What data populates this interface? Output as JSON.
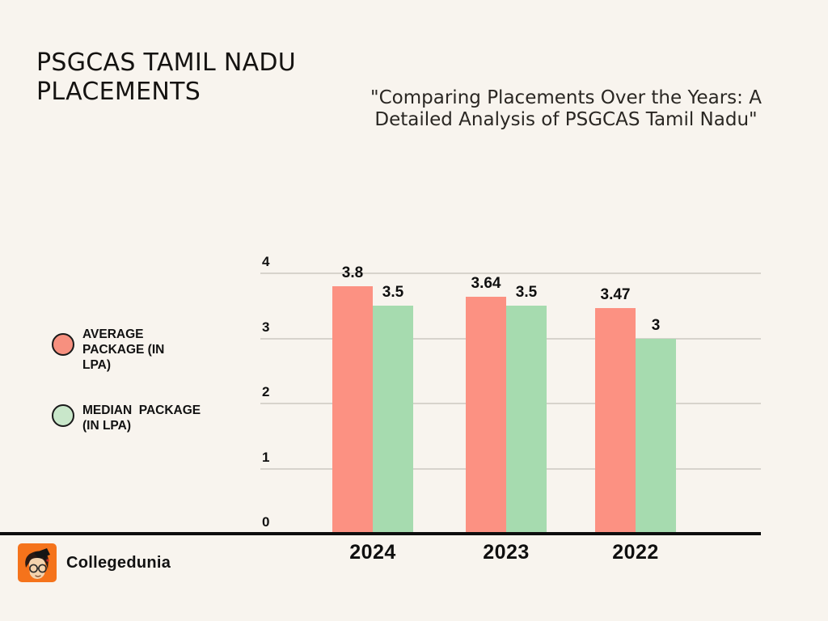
{
  "page": {
    "background": "#F8F4EE"
  },
  "header": {
    "title": "PSGCAS TAMIL NADU PLACEMENTS",
    "subtitle": "\"Comparing Placements Over the Years: A Detailed Analysis of PSGCAS Tamil Nadu\""
  },
  "legend": {
    "items": [
      {
        "label": "AVERAGE PACKAGE (IN LPA)",
        "color": "#F7907F"
      },
      {
        "label": "MEDIAN  PACKAGE (IN LPA)",
        "color": "#C9E7CA"
      }
    ]
  },
  "chart_data": {
    "type": "bar",
    "categories": [
      "2024",
      "2023",
      "2022"
    ],
    "series": [
      {
        "name": "AVERAGE PACKAGE (IN LPA)",
        "color": "#FC9182",
        "values": [
          3.8,
          3.64,
          3.47
        ],
        "labels": [
          "3.8",
          "3.64",
          "3.47"
        ]
      },
      {
        "name": "MEDIAN PACKAGE (IN LPA)",
        "color": "#A6DBAF",
        "values": [
          3.5,
          3.5,
          3.0
        ],
        "labels": [
          "3.5",
          "3.5",
          "3"
        ]
      }
    ],
    "title": "PSGCAS TAMIL NADU PLACEMENTS",
    "xlabel": "",
    "ylabel": "",
    "yticks": [
      0,
      1,
      2,
      3,
      4
    ],
    "ylim": [
      0,
      4
    ],
    "grid": true,
    "legend_position": "left",
    "axis_color": "#0D0D0D",
    "gridline_color": "#D7D3CC"
  },
  "footer": {
    "brand": "Collegedunia",
    "brand_color": "#F5731B"
  }
}
